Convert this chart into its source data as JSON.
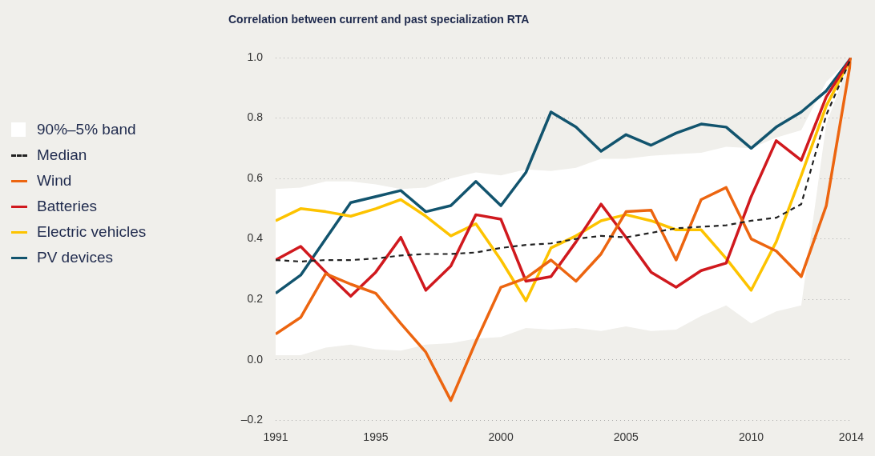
{
  "chart_data": {
    "type": "line",
    "title": "Correlation between current and past specialization RTA",
    "annotations": [
      "90%–5% band"
    ],
    "x": [
      1991,
      1992,
      1993,
      1994,
      1995,
      1996,
      1997,
      1998,
      1999,
      2000,
      2001,
      2002,
      2003,
      2004,
      2005,
      2006,
      2007,
      2008,
      2009,
      2010,
      2011,
      2012,
      2013,
      2014
    ],
    "series": [
      {
        "name": "Median",
        "color": "#222222",
        "line_style": "dashed",
        "values": [
          0.33,
          0.325,
          0.33,
          0.33,
          0.335,
          0.345,
          0.35,
          0.35,
          0.355,
          0.37,
          0.38,
          0.385,
          0.4,
          0.41,
          0.405,
          0.42,
          0.435,
          0.44,
          0.445,
          0.46,
          0.47,
          0.515,
          0.81,
          1.0
        ],
        "lower": [
          0.015,
          0.015,
          0.04,
          0.05,
          0.035,
          0.03,
          0.05,
          0.055,
          0.07,
          0.075,
          0.105,
          0.1,
          0.105,
          0.095,
          0.11,
          0.095,
          0.1,
          0.145,
          0.18,
          0.12,
          0.16,
          0.18,
          0.78,
          1.0
        ],
        "upper": [
          0.565,
          0.57,
          0.59,
          0.59,
          0.58,
          0.565,
          0.57,
          0.6,
          0.62,
          0.61,
          0.63,
          0.625,
          0.635,
          0.665,
          0.665,
          0.675,
          0.68,
          0.685,
          0.705,
          0.7,
          0.735,
          0.76,
          0.92,
          1.0
        ]
      },
      {
        "name": "Wind",
        "color": "#ec6510",
        "values": [
          0.085,
          0.14,
          0.285,
          0.25,
          0.22,
          0.12,
          0.025,
          -0.135,
          0.06,
          0.24,
          0.27,
          0.33,
          0.26,
          0.35,
          0.49,
          0.495,
          0.33,
          0.53,
          0.57,
          0.4,
          0.36,
          0.275,
          0.51,
          1.0
        ]
      },
      {
        "name": "Batteries",
        "color": "#d0191e",
        "values": [
          0.33,
          0.375,
          0.29,
          0.21,
          0.29,
          0.405,
          0.23,
          0.31,
          0.48,
          0.465,
          0.26,
          0.275,
          0.39,
          0.515,
          0.405,
          0.29,
          0.24,
          0.295,
          0.32,
          0.54,
          0.725,
          0.66,
          0.87,
          1.0
        ]
      },
      {
        "name": "Electric vehicles",
        "color": "#fdc300",
        "values": [
          0.46,
          0.5,
          0.49,
          0.475,
          0.5,
          0.53,
          0.475,
          0.41,
          0.45,
          0.33,
          0.195,
          0.37,
          0.41,
          0.46,
          0.48,
          0.46,
          0.43,
          0.43,
          0.335,
          0.23,
          0.39,
          0.61,
          0.84,
          1.0
        ]
      },
      {
        "name": "PV devices",
        "color": "#12546e",
        "values": [
          0.22,
          0.28,
          0.4,
          0.52,
          0.54,
          0.56,
          0.49,
          0.51,
          0.59,
          0.51,
          0.62,
          0.82,
          0.77,
          0.69,
          0.745,
          0.71,
          0.75,
          0.78,
          0.77,
          0.7,
          0.77,
          0.82,
          0.89,
          1.0
        ]
      }
    ],
    "xlim": [
      1991,
      2014
    ],
    "xticks": [
      1991,
      1995,
      2000,
      2005,
      2010,
      2014
    ],
    "ylim": [
      -0.2,
      1.0
    ],
    "yticks": [
      {
        "value": -0.2,
        "label": "–0.2"
      },
      {
        "value": 0,
        "label": "0.0"
      },
      {
        "value": 0.2,
        "label": "0.2"
      },
      {
        "value": 0.4,
        "label": "0.4"
      },
      {
        "value": 0.6,
        "label": "0.6"
      },
      {
        "value": 0.8,
        "label": "0.8"
      },
      {
        "value": 1.0,
        "label": "1.0"
      }
    ],
    "grid": "y",
    "legend": "left",
    "marker": "none"
  }
}
